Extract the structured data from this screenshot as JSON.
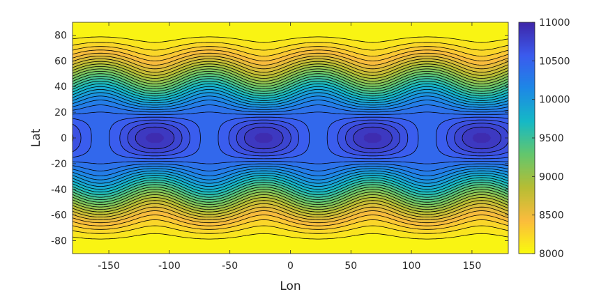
{
  "chart_data": {
    "type": "heatmap",
    "subtype": "filled-contour",
    "title": "",
    "xlabel": "Lon",
    "ylabel": "Lat",
    "xlim": [
      -180,
      180
    ],
    "ylim": [
      -90,
      90
    ],
    "x_ticks": [
      -150,
      -100,
      -50,
      0,
      50,
      100,
      150
    ],
    "y_ticks": [
      -80,
      -60,
      -40,
      -20,
      0,
      20,
      40,
      60,
      80
    ],
    "colorbar": {
      "range": [
        8000,
        11000
      ],
      "ticks": [
        8000,
        8500,
        9000,
        9500,
        10000,
        10500,
        11000
      ],
      "colormap": "parula",
      "colors": [
        "#f9fb0e",
        "#fbbc3d",
        "#b7bd34",
        "#64c66d",
        "#15b9c6",
        "#1d88e6",
        "#3b5bee",
        "#3e26a8"
      ]
    },
    "field": {
      "description_of_values": "maximum ~10900 near equator, minimum ~8000 near poles",
      "equator_max": 10900,
      "polar_min": 8000,
      "high_centers_lon": [
        -112,
        -23,
        67,
        157
      ],
      "saddle_lon": [
        -157,
        -68,
        22,
        112
      ],
      "contour_interval": 100
    },
    "grid": false,
    "colorbar_position": "right"
  }
}
